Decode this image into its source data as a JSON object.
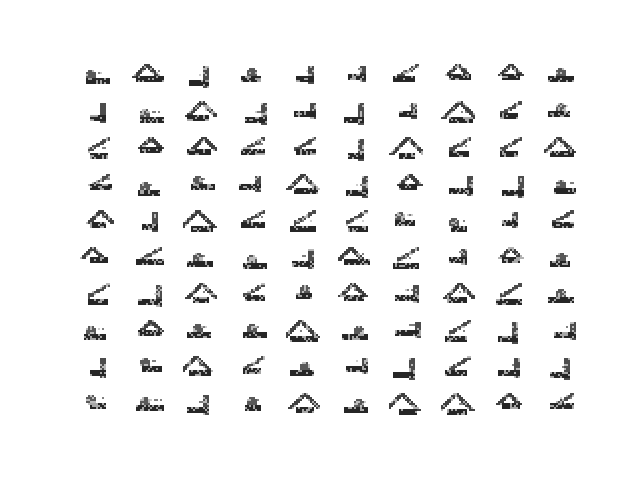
{
  "figure": {
    "type": "image-grid",
    "rows": 10,
    "cols": 10,
    "background_color": "#ffffff",
    "ink_color": "#000000",
    "description_free": true
  }
}
